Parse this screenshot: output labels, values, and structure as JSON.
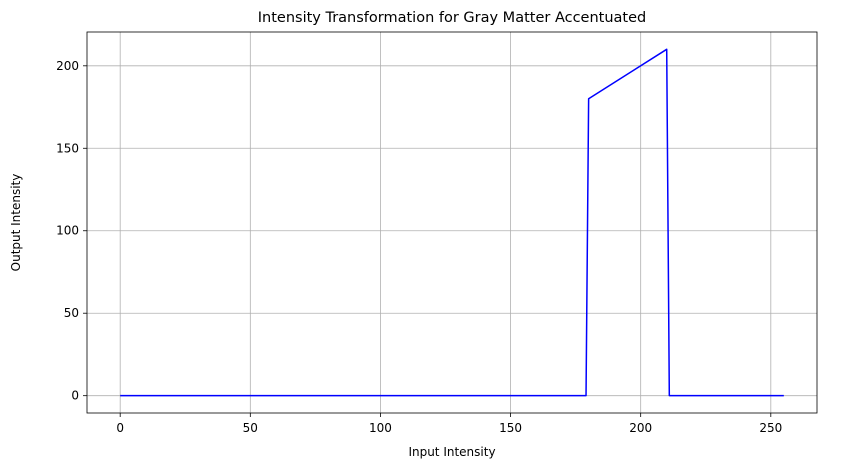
{
  "chart_data": {
    "type": "line",
    "title": "Intensity Transformation for Gray Matter Accentuated",
    "xlabel": "Input Intensity",
    "ylabel": "Output Intensity",
    "xlim": [
      -12.75,
      267.75
    ],
    "ylim": [
      -10.5,
      220.5
    ],
    "xticks": [
      0,
      50,
      100,
      150,
      200,
      250
    ],
    "yticks": [
      0,
      50,
      100,
      150,
      200
    ],
    "grid": true,
    "colors": {
      "series": "#0000ff"
    },
    "series": [
      {
        "x": [
          0,
          179,
          180,
          210,
          211,
          255
        ],
        "y": [
          0,
          0,
          180,
          210,
          0,
          0
        ]
      }
    ]
  }
}
